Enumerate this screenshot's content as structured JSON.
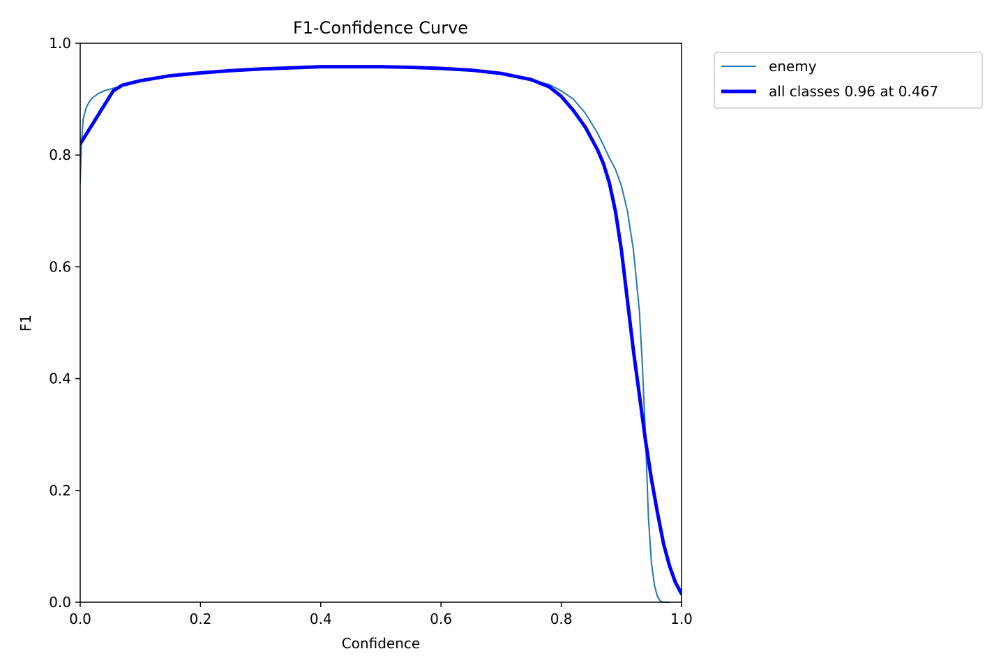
{
  "chart_data": {
    "type": "line",
    "title": "F1-Confidence Curve",
    "xlabel": "Confidence",
    "ylabel": "F1",
    "xlim": [
      0.0,
      1.0
    ],
    "ylim": [
      0.0,
      1.0
    ],
    "xticks": [
      "0.0",
      "0.2",
      "0.4",
      "0.6",
      "0.8",
      "1.0"
    ],
    "yticks": [
      "0.0",
      "0.2",
      "0.4",
      "0.6",
      "0.8",
      "1.0"
    ],
    "grid": false,
    "legend_position": "outside-upper-right",
    "series": [
      {
        "name": "enemy",
        "color": "#1f77b4",
        "width": 2,
        "x": [
          0.0,
          0.002,
          0.005,
          0.01,
          0.015,
          0.02,
          0.03,
          0.04,
          0.05,
          0.06,
          0.08,
          0.1,
          0.15,
          0.2,
          0.25,
          0.3,
          0.35,
          0.4,
          0.45,
          0.5,
          0.55,
          0.6,
          0.65,
          0.7,
          0.75,
          0.78,
          0.8,
          0.82,
          0.84,
          0.86,
          0.87,
          0.88,
          0.89,
          0.9,
          0.91,
          0.92,
          0.93,
          0.935,
          0.94,
          0.945,
          0.95,
          0.955,
          0.96,
          0.965,
          0.97,
          0.975,
          0.98
        ],
        "y": [
          0.75,
          0.82,
          0.865,
          0.885,
          0.895,
          0.902,
          0.91,
          0.915,
          0.918,
          0.921,
          0.928,
          0.933,
          0.941,
          0.947,
          0.951,
          0.954,
          0.956,
          0.958,
          0.958,
          0.958,
          0.957,
          0.955,
          0.951,
          0.945,
          0.935,
          0.926,
          0.915,
          0.9,
          0.875,
          0.84,
          0.818,
          0.795,
          0.775,
          0.745,
          0.7,
          0.63,
          0.52,
          0.42,
          0.3,
          0.15,
          0.07,
          0.03,
          0.01,
          0.002,
          0.0,
          0.0,
          0.0
        ]
      },
      {
        "name": "all classes 0.96 at 0.467",
        "color": "#0000ff",
        "width": 5,
        "x": [
          0.0,
          0.055,
          0.07,
          0.1,
          0.15,
          0.2,
          0.25,
          0.3,
          0.35,
          0.4,
          0.467,
          0.5,
          0.55,
          0.6,
          0.65,
          0.7,
          0.75,
          0.78,
          0.8,
          0.82,
          0.84,
          0.86,
          0.87,
          0.88,
          0.89,
          0.9,
          0.91,
          0.92,
          0.93,
          0.94,
          0.95,
          0.96,
          0.97,
          0.98,
          0.99,
          1.0
        ],
        "y": [
          0.82,
          0.915,
          0.925,
          0.933,
          0.942,
          0.947,
          0.951,
          0.954,
          0.956,
          0.958,
          0.958,
          0.958,
          0.957,
          0.955,
          0.952,
          0.946,
          0.935,
          0.922,
          0.905,
          0.88,
          0.85,
          0.81,
          0.785,
          0.75,
          0.7,
          0.63,
          0.54,
          0.45,
          0.37,
          0.29,
          0.22,
          0.16,
          0.105,
          0.065,
          0.035,
          0.015
        ]
      }
    ]
  }
}
